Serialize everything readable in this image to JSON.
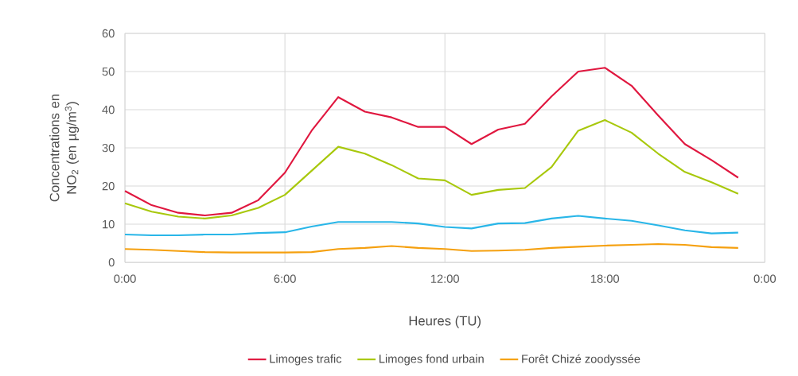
{
  "chart_data": {
    "type": "line",
    "xlabel": "Heures (TU)",
    "ylabel": "Concentrations en NO$_{2}$ (en µg/m$^{3}$)",
    "x": [
      0,
      1,
      2,
      3,
      4,
      5,
      6,
      7,
      8,
      9,
      10,
      11,
      12,
      13,
      14,
      15,
      16,
      17,
      18,
      19,
      20,
      21,
      22,
      23
    ],
    "xlim": [
      0,
      24
    ],
    "xticks": [
      {
        "value": 0,
        "label": "0:00"
      },
      {
        "value": 6,
        "label": "6:00"
      },
      {
        "value": 12,
        "label": "12:00"
      },
      {
        "value": 18,
        "label": "18:00"
      },
      {
        "value": 24,
        "label": "0:00"
      }
    ],
    "ylim": [
      0,
      60
    ],
    "yticks": [
      0,
      10,
      20,
      30,
      40,
      50,
      60
    ],
    "grid": true,
    "legend": "bottom",
    "marker": "none",
    "line_style": "solid",
    "series": [
      {
        "color": "#29b6e8",
        "values": [
          7.3,
          7.1,
          7.1,
          7.3,
          7.3,
          7.7,
          7.9,
          9.4,
          10.6,
          10.6,
          10.6,
          10.2,
          9.3,
          8.9,
          10.2,
          10.3,
          11.5,
          12.2,
          11.5,
          10.9,
          9.7,
          8.4,
          7.6,
          7.8
        ]
      },
      {
        "name": "Limoges trafic",
        "color": "#e0173f",
        "values": [
          18.7,
          15,
          13,
          12.3,
          13,
          16.3,
          23.5,
          34.5,
          43.3,
          39.5,
          38,
          35.5,
          35.5,
          31,
          34.8,
          36.3,
          43.5,
          50,
          51,
          46.3,
          38.5,
          31,
          26.8,
          22.2
        ]
      },
      {
        "name": "Limoges fond urbain",
        "color": "#a8c80c",
        "values": [
          15.5,
          13.3,
          12,
          11.5,
          12.3,
          14.3,
          17.7,
          24,
          30.3,
          28.5,
          25.5,
          22,
          21.5,
          17.7,
          19,
          19.5,
          25,
          34.5,
          37.3,
          34,
          28.5,
          23.7,
          21,
          18
        ]
      },
      {
        "name": "Forêt Chizé zoodyssée",
        "color": "#f5a00f",
        "values": [
          3.5,
          3.3,
          3,
          2.7,
          2.6,
          2.6,
          2.6,
          2.7,
          3.5,
          3.8,
          4.3,
          3.8,
          3.5,
          3,
          3.1,
          3.3,
          3.8,
          4.1,
          4.4,
          4.6,
          4.8,
          4.6,
          4,
          3.8
        ]
      }
    ]
  }
}
